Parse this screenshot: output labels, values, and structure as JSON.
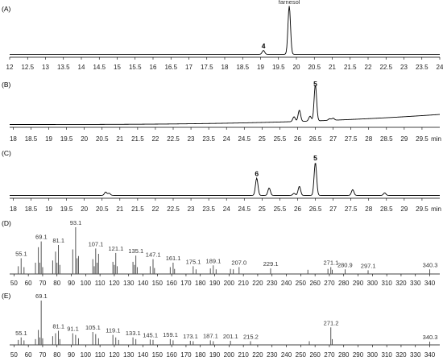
{
  "chart_data": [
    {
      "id": "A",
      "type": "line",
      "panel_label": "(A)",
      "xlim": [
        12,
        24
      ],
      "xticks": [
        "12",
        "12.5",
        "13",
        "13.5",
        "14",
        "14.5",
        "15",
        "15.5",
        "16",
        "16.5",
        "17",
        "17.5",
        "18",
        "18.5",
        "19",
        "19.5",
        "20",
        "20.5",
        "21",
        "21.5",
        "22",
        "22.5",
        "23",
        "23.5",
        "24"
      ],
      "xticklabel_values": [
        12,
        12.5,
        13,
        13.5,
        14,
        14.5,
        15,
        15.5,
        16,
        16.5,
        17,
        17.5,
        18,
        18.5,
        19,
        19.5,
        20,
        20.5,
        21,
        21.5,
        22,
        22.5,
        23,
        23.5,
        24
      ],
      "xunit": "",
      "peaks": [
        {
          "x": 19.08,
          "h": 0.08
        },
        {
          "x": 19.8,
          "h": 1.0
        }
      ],
      "annotations": [
        {
          "text": "4",
          "x": 19.08,
          "h": 0.08,
          "bold": true
        },
        {
          "text": "farnesol",
          "x": 19.8,
          "h": 1.0,
          "bold": false
        }
      ]
    },
    {
      "id": "B",
      "type": "line",
      "panel_label": "(B)",
      "xlim": [
        17.9,
        30.0
      ],
      "xticks": [
        "18",
        "18.5",
        "19",
        "19.5",
        "20",
        "20.5",
        "21",
        "21.5",
        "22",
        "22.5",
        "23",
        "23.5",
        "24",
        "24.5",
        "25",
        "25.5",
        "26",
        "26.5",
        "27",
        "27.5",
        "28",
        "28.5",
        "29",
        "29.5"
      ],
      "xticklabel_values": [
        18,
        18.5,
        19,
        19.5,
        20,
        20.5,
        21,
        21.5,
        22,
        22.5,
        23,
        23.5,
        24,
        24.5,
        25,
        25.5,
        26,
        26.5,
        27,
        27.5,
        28,
        28.5,
        29,
        29.5
      ],
      "xunit": "min",
      "peaks": [
        {
          "x": 25.9,
          "h": 0.12
        },
        {
          "x": 26.05,
          "h": 0.28
        },
        {
          "x": 26.35,
          "h": 0.12
        },
        {
          "x": 26.5,
          "h": 0.9
        },
        {
          "x": 26.9,
          "h": 0.04
        },
        {
          "x": 27.0,
          "h": 0.05
        }
      ],
      "annotations": [
        {
          "text": "5",
          "x": 26.5,
          "h": 0.9,
          "bold": true
        }
      ]
    },
    {
      "id": "C",
      "type": "line",
      "panel_label": "(C)",
      "xlim": [
        17.9,
        30.0
      ],
      "xticks": [
        "18",
        "18.5",
        "19",
        "19.5",
        "20",
        "20.5",
        "21",
        "21.5",
        "22",
        "22.5",
        "23",
        "23.5",
        "24",
        "24.5",
        "25",
        "25.5",
        "26",
        "26.5",
        "27",
        "27.5",
        "28",
        "28.5",
        "29",
        "29.5"
      ],
      "xticklabel_values": [
        18,
        18.5,
        19,
        19.5,
        20,
        20.5,
        21,
        21.5,
        22,
        22.5,
        23,
        23.5,
        24,
        24.5,
        25,
        25.5,
        26,
        26.5,
        27,
        27.5,
        28,
        28.5,
        29,
        29.5
      ],
      "xunit": "min",
      "peaks": [
        {
          "x": 20.6,
          "h": 0.08
        },
        {
          "x": 20.7,
          "h": 0.05
        },
        {
          "x": 24.85,
          "h": 0.42
        },
        {
          "x": 25.2,
          "h": 0.18
        },
        {
          "x": 25.9,
          "h": 0.05
        },
        {
          "x": 26.05,
          "h": 0.22
        },
        {
          "x": 26.5,
          "h": 0.8
        },
        {
          "x": 27.55,
          "h": 0.14
        },
        {
          "x": 28.45,
          "h": 0.06
        }
      ],
      "annotations": [
        {
          "text": "6",
          "x": 24.85,
          "h": 0.42,
          "bold": true
        },
        {
          "text": "5",
          "x": 26.5,
          "h": 0.8,
          "bold": true
        }
      ]
    },
    {
      "id": "D",
      "type": "bar",
      "panel_label": "(D)",
      "xlim": [
        47,
        347
      ],
      "xticks": [
        "50",
        "60",
        "70",
        "80",
        "90",
        "100",
        "110",
        "120",
        "130",
        "140",
        "150",
        "160",
        "170",
        "180",
        "190",
        "200",
        "210",
        "220",
        "230",
        "240",
        "250",
        "260",
        "270",
        "280",
        "290",
        "300",
        "310",
        "320",
        "330",
        "340"
      ],
      "xticklabel_values": [
        50,
        60,
        70,
        80,
        90,
        100,
        110,
        120,
        130,
        140,
        150,
        160,
        170,
        180,
        190,
        200,
        210,
        220,
        230,
        240,
        250,
        260,
        270,
        280,
        290,
        300,
        310,
        320,
        330,
        340
      ],
      "mz": [
        53,
        55,
        57,
        65,
        67,
        68,
        69,
        70,
        77,
        79,
        80,
        81,
        82,
        91,
        93,
        94,
        95,
        105,
        106,
        107,
        108,
        109,
        119,
        120,
        121,
        122,
        133,
        134,
        135,
        136,
        145,
        147,
        148,
        159,
        161,
        162,
        175,
        177,
        187,
        189,
        191,
        201,
        203,
        207,
        229,
        255,
        269,
        271,
        272,
        281,
        297,
        340
      ],
      "intensity": [
        0.12,
        0.3,
        0.1,
        0.2,
        0.55,
        0.2,
        0.68,
        0.1,
        0.25,
        0.45,
        0.2,
        0.6,
        0.15,
        0.5,
        1.0,
        0.3,
        0.35,
        0.28,
        0.12,
        0.52,
        0.2,
        0.4,
        0.22,
        0.15,
        0.42,
        0.12,
        0.22,
        0.15,
        0.36,
        0.1,
        0.12,
        0.28,
        0.08,
        0.1,
        0.2,
        0.06,
        0.12,
        0.05,
        0.07,
        0.14,
        0.05,
        0.06,
        0.05,
        0.1,
        0.07,
        0.04,
        0.06,
        0.1,
        0.04,
        0.05,
        0.03,
        0.05
      ],
      "labels": [
        {
          "mz": 55.1,
          "text": "55.1",
          "h": 0.3
        },
        {
          "mz": 69.1,
          "text": "69.1",
          "h": 0.68
        },
        {
          "mz": 81.1,
          "text": "81.1",
          "h": 0.6
        },
        {
          "mz": 93.1,
          "text": "93.1",
          "h": 1.0
        },
        {
          "mz": 107.1,
          "text": "107.1",
          "h": 0.52
        },
        {
          "mz": 121.1,
          "text": "121.1",
          "h": 0.42
        },
        {
          "mz": 135.1,
          "text": "135.1",
          "h": 0.36
        },
        {
          "mz": 147.1,
          "text": "147.1",
          "h": 0.28
        },
        {
          "mz": 161.1,
          "text": "161.1",
          "h": 0.2
        },
        {
          "mz": 175.1,
          "text": "175.1",
          "h": 0.12
        },
        {
          "mz": 189.1,
          "text": "189.1",
          "h": 0.14
        },
        {
          "mz": 207.0,
          "text": "207.0",
          "h": 0.1
        },
        {
          "mz": 229.1,
          "text": "229.1",
          "h": 0.07
        },
        {
          "mz": 271.1,
          "text": "271.1",
          "h": 0.1
        },
        {
          "mz": 280.9,
          "text": "280.9",
          "h": 0.05
        },
        {
          "mz": 297.1,
          "text": "297.1",
          "h": 0.03
        },
        {
          "mz": 340.3,
          "text": "340.3",
          "h": 0.05
        }
      ]
    },
    {
      "id": "E",
      "type": "bar",
      "panel_label": "(E)",
      "xlim": [
        47,
        347
      ],
      "xticks": [
        "50",
        "60",
        "70",
        "80",
        "90",
        "100",
        "110",
        "120",
        "130",
        "140",
        "150",
        "160",
        "170",
        "180",
        "190",
        "200",
        "210",
        "220",
        "230",
        "240",
        "250",
        "260",
        "270",
        "280",
        "290",
        "300",
        "310",
        "320",
        "330",
        "340"
      ],
      "xticklabel_values": [
        50,
        60,
        70,
        80,
        90,
        100,
        110,
        120,
        130,
        140,
        150,
        160,
        170,
        180,
        190,
        200,
        210,
        220,
        230,
        240,
        250,
        260,
        270,
        280,
        290,
        300,
        310,
        320,
        330,
        340
      ],
      "mz": [
        53,
        55,
        57,
        65,
        67,
        68,
        69,
        70,
        77,
        79,
        81,
        82,
        91,
        93,
        95,
        105,
        107,
        109,
        119,
        121,
        123,
        133,
        135,
        145,
        147,
        159,
        161,
        173,
        175,
        187,
        189,
        201,
        215,
        256,
        271,
        272,
        340
      ],
      "intensity": [
        0.06,
        0.12,
        0.05,
        0.08,
        0.3,
        0.12,
        1.0,
        0.1,
        0.15,
        0.22,
        0.28,
        0.08,
        0.22,
        0.18,
        0.1,
        0.25,
        0.2,
        0.1,
        0.18,
        0.12,
        0.06,
        0.12,
        0.08,
        0.07,
        0.06,
        0.08,
        0.05,
        0.04,
        0.03,
        0.05,
        0.03,
        0.04,
        0.03,
        0.03,
        0.36,
        0.08,
        0.02
      ],
      "labels": [
        {
          "mz": 55.1,
          "text": "55.1",
          "h": 0.12
        },
        {
          "mz": 69.1,
          "text": "69.1",
          "h": 1.0
        },
        {
          "mz": 81.1,
          "text": "81.1",
          "h": 0.28
        },
        {
          "mz": 91.1,
          "text": "91.1",
          "h": 0.22
        },
        {
          "mz": 105.1,
          "text": "105.1",
          "h": 0.25
        },
        {
          "mz": 119.1,
          "text": "119.1",
          "h": 0.18
        },
        {
          "mz": 133.1,
          "text": "133.1",
          "h": 0.12
        },
        {
          "mz": 145.1,
          "text": "145.1",
          "h": 0.07
        },
        {
          "mz": 159.1,
          "text": "159.1",
          "h": 0.08
        },
        {
          "mz": 173.1,
          "text": "173.1",
          "h": 0.04
        },
        {
          "mz": 187.1,
          "text": "187.1",
          "h": 0.05
        },
        {
          "mz": 201.1,
          "text": "201.1",
          "h": 0.04
        },
        {
          "mz": 215.2,
          "text": "215.2",
          "h": 0.03
        },
        {
          "mz": 271.2,
          "text": "271.2",
          "h": 0.36
        },
        {
          "mz": 340.3,
          "text": "340.3",
          "h": 0.02
        }
      ]
    }
  ]
}
